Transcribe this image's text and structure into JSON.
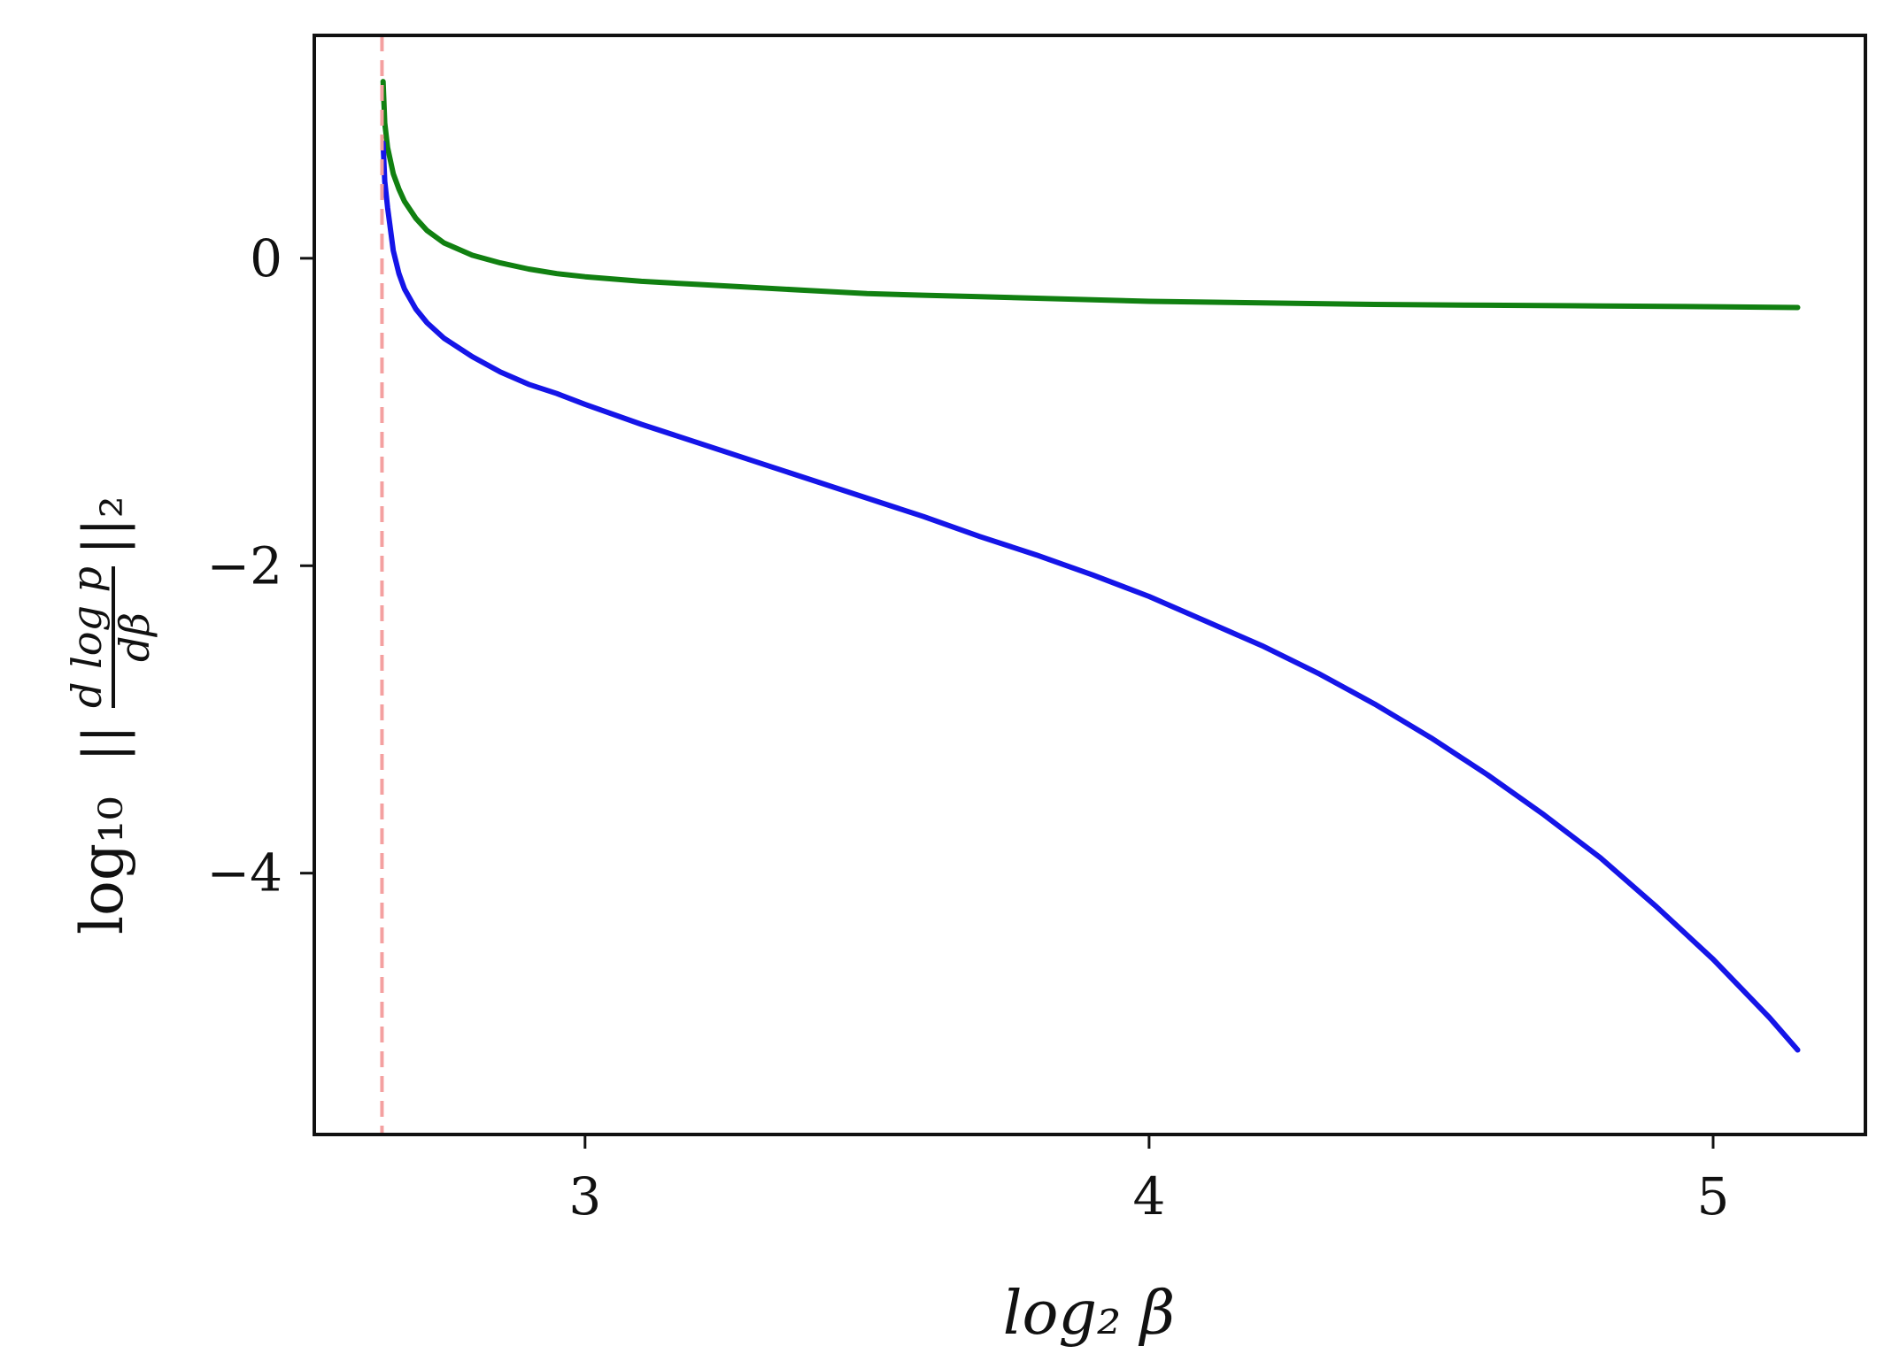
{
  "chart_data": {
    "type": "line",
    "xlabel": "log₂ β",
    "ylabel": {
      "prefix": "log₁₀",
      "norm_open": "||",
      "frac_numerator": "d log p",
      "frac_denominator": "dβ",
      "norm_close": "||₂"
    },
    "xlim": [
      2.52,
      5.27
    ],
    "ylim": [
      -5.7,
      1.45
    ],
    "x_ticks": [
      3,
      4,
      5
    ],
    "x_tick_labels": [
      "3",
      "4",
      "5"
    ],
    "y_ticks": [
      0,
      -2,
      -4
    ],
    "y_tick_labels": [
      "0",
      "−2",
      "−4"
    ],
    "grid": false,
    "legend": "none",
    "reference_line": {
      "x": 2.64,
      "style": "dashed",
      "color": "#f4a0a0"
    },
    "series": [
      {
        "color": "#118011",
        "x": [
          2.642,
          2.645,
          2.65,
          2.66,
          2.67,
          2.68,
          2.7,
          2.72,
          2.75,
          2.8,
          2.85,
          2.9,
          2.95,
          3.0,
          3.1,
          3.2,
          3.3,
          3.4,
          3.5,
          3.6,
          3.7,
          3.8,
          3.9,
          4.0,
          4.2,
          4.4,
          4.6,
          4.8,
          5.0,
          5.15
        ],
        "y": [
          1.15,
          0.88,
          0.72,
          0.55,
          0.45,
          0.37,
          0.26,
          0.18,
          0.1,
          0.02,
          -0.03,
          -0.07,
          -0.1,
          -0.12,
          -0.15,
          -0.17,
          -0.19,
          -0.21,
          -0.23,
          -0.24,
          -0.25,
          -0.26,
          -0.27,
          -0.28,
          -0.29,
          -0.3,
          -0.305,
          -0.31,
          -0.315,
          -0.32
        ]
      },
      {
        "color": "#1515e8",
        "x": [
          2.642,
          2.645,
          2.65,
          2.66,
          2.67,
          2.68,
          2.7,
          2.72,
          2.75,
          2.8,
          2.85,
          2.9,
          2.95,
          3.0,
          3.1,
          3.2,
          3.3,
          3.4,
          3.5,
          3.6,
          3.7,
          3.8,
          3.9,
          4.0,
          4.1,
          4.2,
          4.3,
          4.4,
          4.5,
          4.6,
          4.7,
          4.8,
          4.9,
          5.0,
          5.1,
          5.15
        ],
        "y": [
          0.75,
          0.5,
          0.33,
          0.05,
          -0.1,
          -0.2,
          -0.33,
          -0.42,
          -0.52,
          -0.64,
          -0.74,
          -0.82,
          -0.88,
          -0.95,
          -1.08,
          -1.2,
          -1.32,
          -1.44,
          -1.56,
          -1.68,
          -1.81,
          -1.93,
          -2.06,
          -2.2,
          -2.36,
          -2.52,
          -2.7,
          -2.9,
          -3.12,
          -3.36,
          -3.62,
          -3.9,
          -4.22,
          -4.56,
          -4.94,
          -5.15
        ]
      }
    ]
  }
}
